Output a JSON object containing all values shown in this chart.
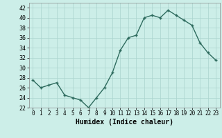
{
  "x": [
    0,
    1,
    2,
    3,
    4,
    5,
    6,
    7,
    8,
    9,
    10,
    11,
    12,
    13,
    14,
    15,
    16,
    17,
    18,
    19,
    20,
    21,
    22,
    23
  ],
  "y": [
    27.5,
    26,
    26.5,
    27,
    24.5,
    24,
    23.5,
    22,
    24,
    26,
    29,
    33.5,
    36,
    36.5,
    40,
    40.5,
    40,
    41.5,
    40.5,
    39.5,
    38.5,
    35,
    33,
    31.5
  ],
  "line_color": "#2e6b5e",
  "marker_color": "#2e6b5e",
  "bg_color": "#cceee8",
  "grid_color": "#aad4ce",
  "xlabel": "Humidex (Indice chaleur)",
  "ylim": [
    22,
    43
  ],
  "xlim": [
    -0.5,
    23.5
  ],
  "yticks": [
    22,
    24,
    26,
    28,
    30,
    32,
    34,
    36,
    38,
    40,
    42
  ],
  "xticks": [
    0,
    1,
    2,
    3,
    4,
    5,
    6,
    7,
    8,
    9,
    10,
    11,
    12,
    13,
    14,
    15,
    16,
    17,
    18,
    19,
    20,
    21,
    22,
    23
  ],
  "xtick_labels": [
    "0",
    "1",
    "2",
    "3",
    "4",
    "5",
    "6",
    "7",
    "8",
    "9",
    "10",
    "11",
    "12",
    "13",
    "14",
    "15",
    "16",
    "17",
    "18",
    "19",
    "20",
    "21",
    "22",
    "23"
  ],
  "linewidth": 1.0,
  "markersize": 3.0
}
